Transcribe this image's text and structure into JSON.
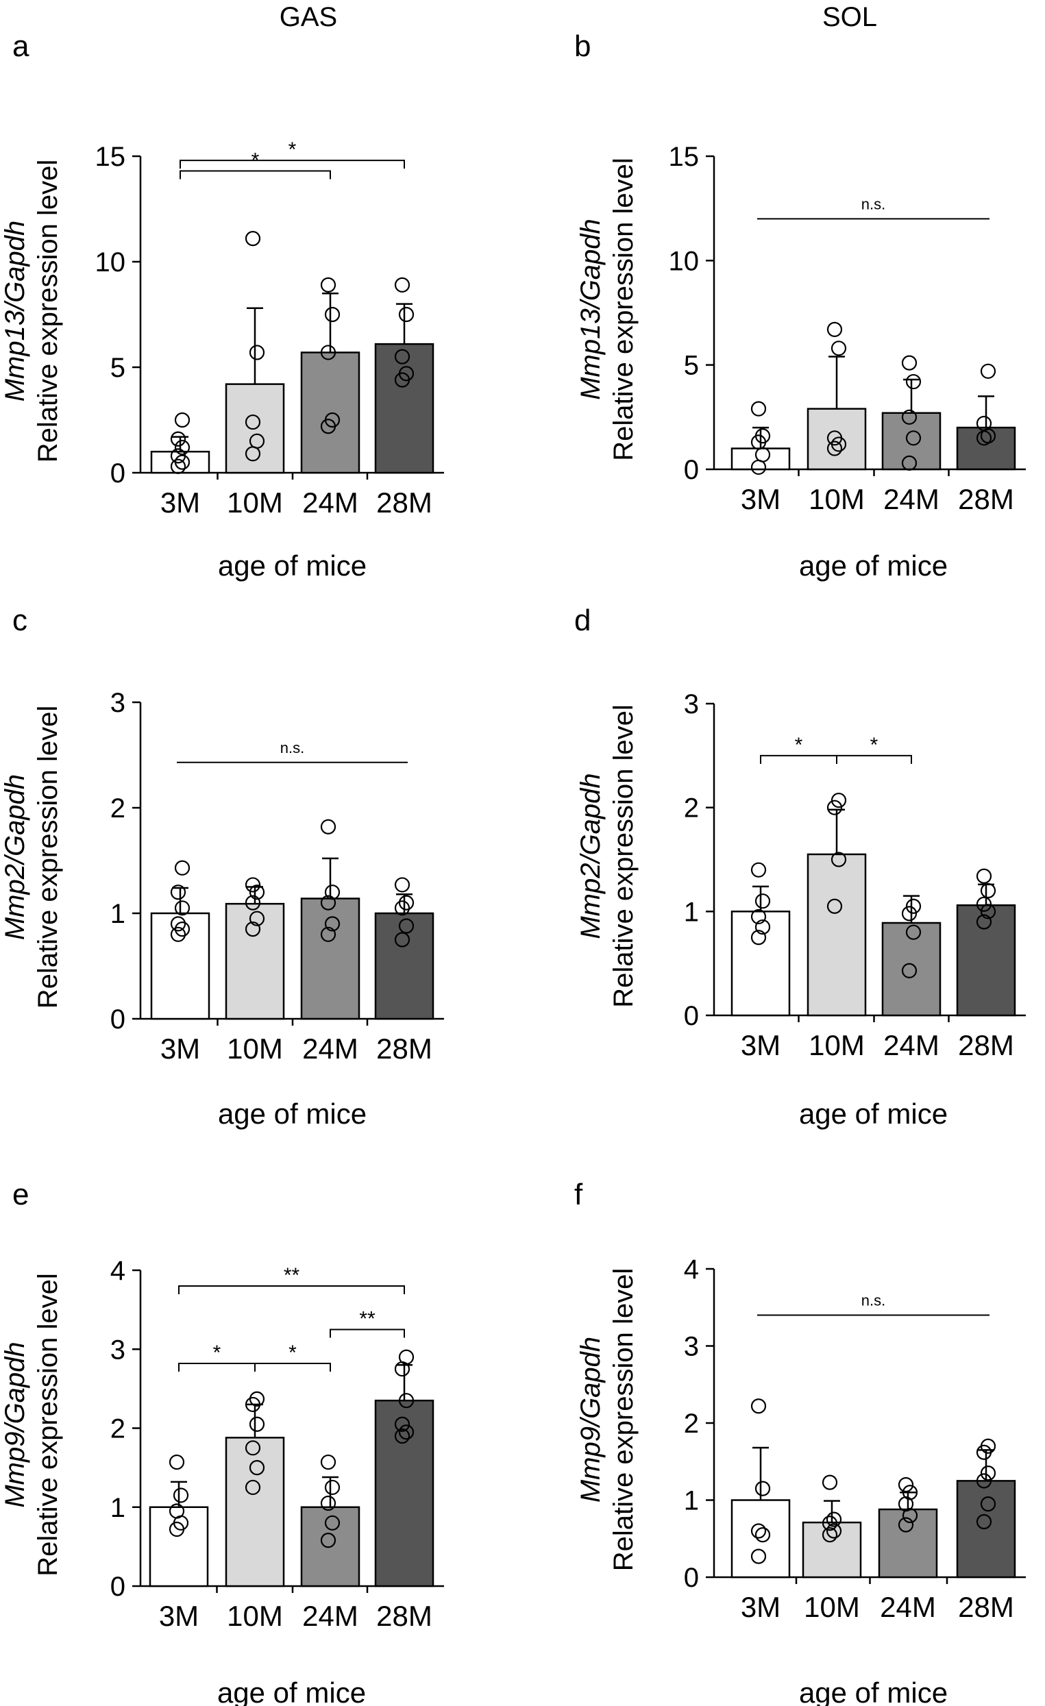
{
  "columns": {
    "left": "GAS",
    "right": "SOL"
  },
  "chart_data": [
    {
      "panel": "a",
      "type": "bar",
      "muscle": "GAS",
      "categories": [
        "3M",
        "10M",
        "24M",
        "28M"
      ],
      "values": [
        1.0,
        4.2,
        5.7,
        6.1
      ],
      "errors": [
        0.7,
        3.6,
        2.8,
        1.9
      ],
      "points": [
        [
          0.3,
          0.5,
          0.8,
          1.2,
          1.6,
          2.5
        ],
        [
          0.9,
          1.5,
          2.4,
          5.7,
          11.1
        ],
        [
          2.2,
          2.5,
          5.7,
          7.5,
          8.9
        ],
        [
          4.4,
          4.7,
          5.5,
          7.5,
          8.9
        ]
      ],
      "bar_colors": [
        "#ffffff",
        "#d9d9d9",
        "#8c8c8c",
        "#555555"
      ],
      "ylim": [
        0,
        15
      ],
      "yticks": [
        0,
        5,
        10,
        15
      ],
      "ylabel_gene": "Mmp13/Gapdh",
      "ylabel": "Relative expression level",
      "xlabel": "age of mice",
      "sig": [
        {
          "from": 0,
          "to": 2,
          "level": 14.3,
          "label": "*"
        },
        {
          "from": 0,
          "to": 3,
          "level": 14.8,
          "label": "*"
        }
      ]
    },
    {
      "panel": "b",
      "type": "bar",
      "muscle": "SOL",
      "categories": [
        "3M",
        "10M",
        "24M",
        "28M"
      ],
      "values": [
        1.0,
        2.9,
        2.7,
        2.0
      ],
      "errors": [
        1.0,
        2.5,
        1.6,
        1.5
      ],
      "points": [
        [
          0.1,
          0.7,
          1.3,
          1.6,
          2.9
        ],
        [
          1.0,
          1.2,
          1.5,
          5.8,
          6.7
        ],
        [
          0.3,
          1.5,
          2.5,
          4.2,
          5.1
        ],
        [
          1.5,
          1.6,
          2.2,
          4.7
        ]
      ],
      "bar_colors": [
        "#ffffff",
        "#d9d9d9",
        "#8c8c8c",
        "#555555"
      ],
      "ylim": [
        0,
        15
      ],
      "yticks": [
        0,
        5,
        10,
        15
      ],
      "ylabel_gene": "Mmp13/Gapdh",
      "ylabel": "Relative expression level",
      "xlabel": "age of mice",
      "sig": [
        {
          "from": 0,
          "to": 3,
          "level": 12.0,
          "label": "n.s.",
          "bracket": false
        }
      ]
    },
    {
      "panel": "c",
      "type": "bar",
      "muscle": "GAS",
      "categories": [
        "3M",
        "10M",
        "24M",
        "28M"
      ],
      "values": [
        1.0,
        1.09,
        1.14,
        1.0
      ],
      "errors": [
        0.24,
        0.16,
        0.38,
        0.18
      ],
      "points": [
        [
          0.8,
          0.85,
          0.9,
          1.05,
          1.2,
          1.43
        ],
        [
          0.85,
          0.95,
          1.1,
          1.2,
          1.27
        ],
        [
          0.8,
          0.9,
          1.1,
          1.2,
          1.82
        ],
        [
          0.75,
          0.88,
          1.05,
          1.1,
          1.27
        ]
      ],
      "bar_colors": [
        "#ffffff",
        "#d9d9d9",
        "#8c8c8c",
        "#555555"
      ],
      "ylim": [
        0,
        3
      ],
      "yticks": [
        0,
        1,
        2,
        3
      ],
      "ylabel_gene": "Mmp2/Gapdh",
      "ylabel": "Relative expression level",
      "xlabel": "age of mice",
      "sig": [
        {
          "from": 0,
          "to": 3,
          "level": 2.43,
          "label": "n.s.",
          "bracket": false
        }
      ]
    },
    {
      "panel": "d",
      "type": "bar",
      "muscle": "SOL",
      "categories": [
        "3M",
        "10M",
        "24M",
        "28M"
      ],
      "values": [
        1.0,
        1.55,
        0.89,
        1.06
      ],
      "errors": [
        0.24,
        0.43,
        0.26,
        0.2
      ],
      "points": [
        [
          0.75,
          0.85,
          0.95,
          1.1,
          1.4
        ],
        [
          1.05,
          1.5,
          2.0,
          2.07
        ],
        [
          0.43,
          0.8,
          0.98,
          1.05
        ],
        [
          0.9,
          1.0,
          1.07,
          1.2,
          1.34
        ]
      ],
      "bar_colors": [
        "#ffffff",
        "#d9d9d9",
        "#8c8c8c",
        "#555555"
      ],
      "ylim": [
        0,
        3
      ],
      "yticks": [
        0,
        1,
        2,
        3
      ],
      "ylabel_gene": "Mmp2/Gapdh",
      "ylabel": "Relative expression level",
      "xlabel": "age of mice",
      "sig": [
        {
          "from": 0,
          "to": 1,
          "level": 2.5,
          "label": "*"
        },
        {
          "from": 1,
          "to": 2,
          "level": 2.5,
          "label": "*"
        }
      ]
    },
    {
      "panel": "e",
      "type": "bar",
      "muscle": "GAS",
      "categories": [
        "3M",
        "10M",
        "24M",
        "28M"
      ],
      "values": [
        1.0,
        1.88,
        1.0,
        2.35
      ],
      "errors": [
        0.32,
        0.42,
        0.38,
        0.45
      ],
      "points": [
        [
          0.72,
          0.8,
          0.95,
          1.15,
          1.57
        ],
        [
          1.25,
          1.5,
          1.75,
          2.05,
          2.3,
          2.37
        ],
        [
          0.58,
          0.8,
          1.05,
          1.25,
          1.57
        ],
        [
          1.9,
          1.95,
          2.05,
          2.35,
          2.75,
          2.9
        ]
      ],
      "bar_colors": [
        "#ffffff",
        "#d9d9d9",
        "#8c8c8c",
        "#555555"
      ],
      "ylim": [
        0,
        4
      ],
      "yticks": [
        0,
        1,
        2,
        3,
        4
      ],
      "ylabel_gene": "Mmp9/Gapdh",
      "ylabel": "Relative expression level",
      "xlabel": "age of mice",
      "sig": [
        {
          "from": 0,
          "to": 1,
          "level": 2.82,
          "label": "*"
        },
        {
          "from": 1,
          "to": 2,
          "level": 2.82,
          "label": "*"
        },
        {
          "from": 2,
          "to": 3,
          "level": 3.25,
          "label": "**"
        },
        {
          "from": 0,
          "to": 3,
          "level": 3.8,
          "label": "**"
        }
      ]
    },
    {
      "panel": "f",
      "type": "bar",
      "muscle": "SOL",
      "categories": [
        "3M",
        "10M",
        "24M",
        "28M"
      ],
      "values": [
        1.0,
        0.71,
        0.88,
        1.25
      ],
      "errors": [
        0.68,
        0.28,
        0.22,
        0.4
      ],
      "points": [
        [
          0.27,
          0.55,
          0.6,
          1.15,
          2.22
        ],
        [
          0.55,
          0.6,
          0.7,
          0.75,
          1.23
        ],
        [
          0.68,
          0.8,
          0.95,
          1.1,
          1.2
        ],
        [
          0.72,
          0.95,
          1.25,
          1.35,
          1.62,
          1.7
        ]
      ],
      "bar_colors": [
        "#ffffff",
        "#d9d9d9",
        "#8c8c8c",
        "#555555"
      ],
      "ylim": [
        0,
        4
      ],
      "yticks": [
        0,
        1,
        2,
        3,
        4
      ],
      "ylabel_gene": "Mmp9/Gapdh",
      "ylabel": "Relative expression level",
      "xlabel": "age of mice",
      "sig": [
        {
          "from": 0,
          "to": 3,
          "level": 3.4,
          "label": "n.s.",
          "bracket": false
        }
      ]
    }
  ]
}
